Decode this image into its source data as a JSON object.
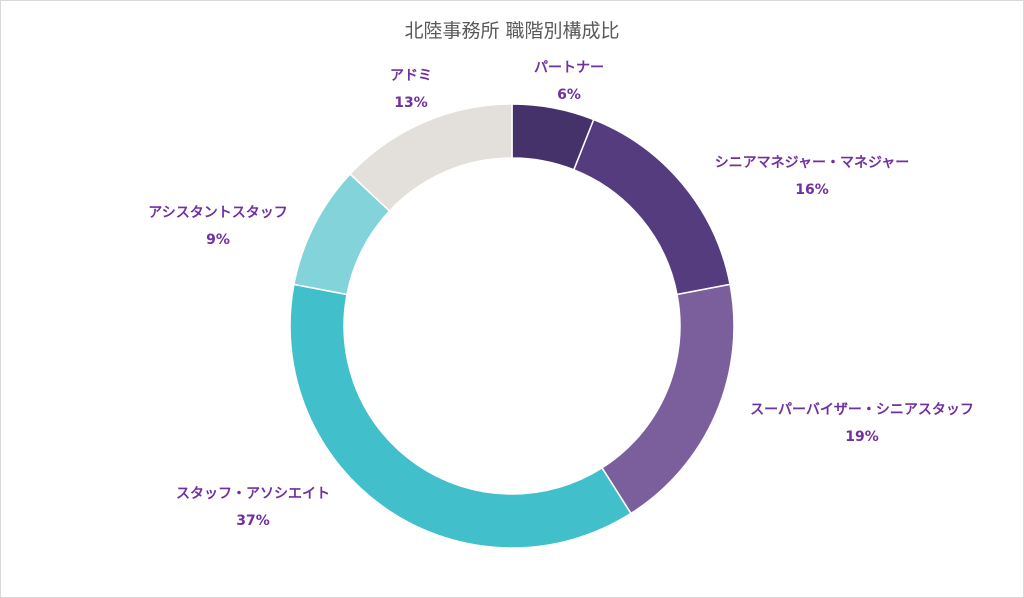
{
  "chart_data": {
    "type": "pie",
    "variant": "donut",
    "title": "北陸事務所 職階別構成比",
    "label_color": "#7030a0",
    "slices": [
      {
        "label": "パートナー",
        "value": 6,
        "display": "6%",
        "color": "#46326b"
      },
      {
        "label": "シニアマネジャー・マネジャー",
        "value": 16,
        "display": "16%",
        "color": "#553c7e"
      },
      {
        "label": "スーパーバイザー・シニアスタッフ",
        "value": 19,
        "display": "19%",
        "color": "#7b5f9d"
      },
      {
        "label": "スタッフ・アソシエイト",
        "value": 37,
        "display": "37%",
        "color": "#41bfca"
      },
      {
        "label": "アシスタントスタッフ",
        "value": 9,
        "display": "9%",
        "color": "#82d4da"
      },
      {
        "label": "アドミ",
        "value": 13,
        "display": "13%",
        "color": "#e3dfda"
      }
    ]
  }
}
